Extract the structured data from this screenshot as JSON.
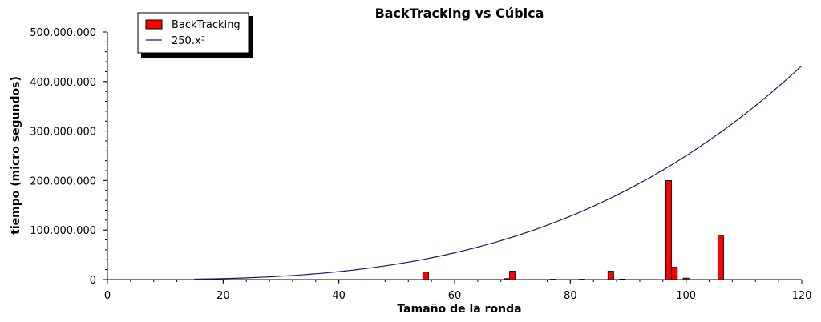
{
  "chart_data": {
    "type": "bar",
    "title": "BackTracking vs Cúbica",
    "xlabel": "Tamaño de la ronda",
    "ylabel": "tiempo (micro segundos)",
    "xlim": [
      0,
      120
    ],
    "ylim": [
      0,
      500000000
    ],
    "x_ticks": [
      0,
      20,
      40,
      60,
      80,
      100,
      120
    ],
    "x_tick_labels": [
      "0",
      "20",
      "40",
      "60",
      "80",
      "100",
      "120"
    ],
    "y_ticks": [
      0,
      100000000,
      200000000,
      300000000,
      400000000,
      500000000
    ],
    "y_tick_labels": [
      "0",
      "100.000.000",
      "200.000.000",
      "300.000.000",
      "400.000.000",
      "500.000.000"
    ],
    "grid": false,
    "legend_position": "top-left",
    "series": [
      {
        "name": "BackTracking",
        "type": "bar",
        "color": "#ff0000",
        "bar_width": 1,
        "points": [
          {
            "x": 55,
            "y": 15000000
          },
          {
            "x": 69,
            "y": 2000000
          },
          {
            "x": 70,
            "y": 17000000
          },
          {
            "x": 77,
            "y": 800000
          },
          {
            "x": 82,
            "y": 800000
          },
          {
            "x": 87,
            "y": 17000000
          },
          {
            "x": 89,
            "y": 1000000
          },
          {
            "x": 97,
            "y": 200000000
          },
          {
            "x": 98,
            "y": 25000000
          },
          {
            "x": 100,
            "y": 3000000
          },
          {
            "x": 106,
            "y": 88000000
          }
        ]
      },
      {
        "name": "250.x³",
        "type": "line",
        "color": "#1a1a66",
        "function": "250*x^3",
        "x_range": [
          15,
          120
        ]
      }
    ]
  }
}
